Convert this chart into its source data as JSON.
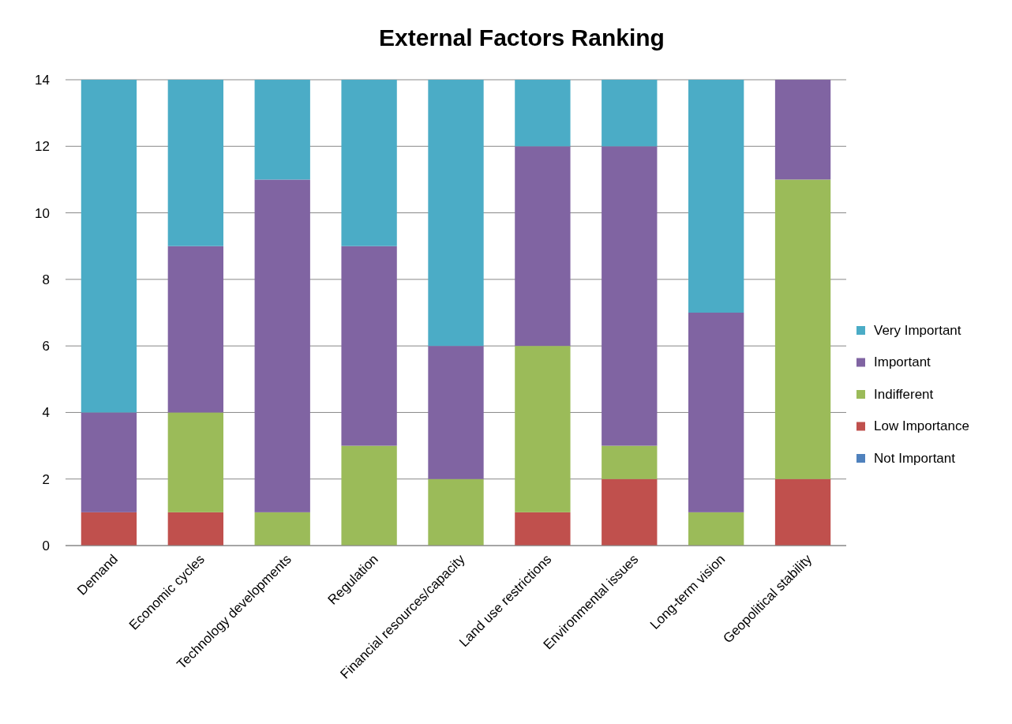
{
  "chart_data": {
    "type": "bar",
    "title": "External Factors Ranking",
    "stacked": true,
    "categories": [
      "Demand",
      "Economic cycles",
      "Technology developments",
      "Regulation",
      "Financial resources/capacity",
      "Land use restrictions",
      "Environmental issues",
      "Long-term vision",
      "Geopolitical stability"
    ],
    "series": [
      {
        "name": "Not Important",
        "color": "#4f81bd",
        "values": [
          0,
          0,
          0,
          0,
          0,
          0,
          0,
          0,
          0
        ]
      },
      {
        "name": "Low Importance",
        "color": "#c0504d",
        "values": [
          1,
          1,
          0,
          0,
          0,
          1,
          2,
          0,
          2
        ]
      },
      {
        "name": "Indifferent",
        "color": "#9bbb59",
        "values": [
          0,
          3,
          1,
          3,
          2,
          5,
          1,
          1,
          9
        ]
      },
      {
        "name": "Important",
        "color": "#8064a2",
        "values": [
          3,
          5,
          10,
          6,
          4,
          6,
          9,
          6,
          3
        ]
      },
      {
        "name": "Very Important",
        "color": "#4bacc6",
        "values": [
          10,
          5,
          3,
          5,
          8,
          2,
          2,
          7,
          0
        ]
      }
    ],
    "ylim": [
      0,
      14
    ],
    "yticks": [
      0,
      2,
      4,
      6,
      8,
      10,
      12,
      14
    ],
    "grid": "y",
    "legend": "right"
  }
}
